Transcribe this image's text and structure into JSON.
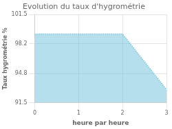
{
  "chart_data": {
    "type": "area",
    "title": "Evolution du taux d'hygrométrie",
    "xlabel": "heure par heure",
    "ylabel": "Taux hygrométrie %",
    "x": [
      0,
      2,
      3
    ],
    "values": [
      99.3,
      99.3,
      93.0
    ],
    "color": "#5bb8d4",
    "line_style": "dotted",
    "xlim": [
      0,
      3
    ],
    "ylim": [
      91.5,
      101.5
    ],
    "xticks": [
      0,
      1,
      2,
      3
    ],
    "yticks": [
      91.5,
      94.8,
      98.2,
      101.5
    ],
    "grid": true
  }
}
